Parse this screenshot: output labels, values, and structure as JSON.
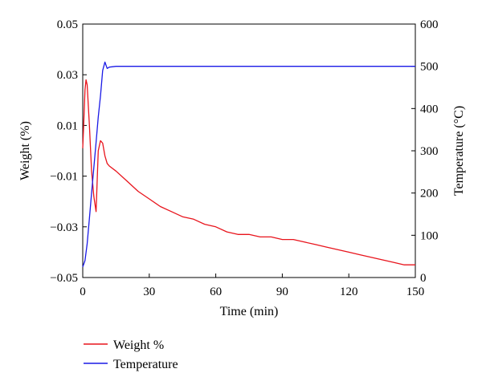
{
  "chart_data": {
    "type": "line",
    "xlabel": "Time (min)",
    "ylabel_left": "Weight (%)",
    "ylabel_right": "Temperature (°C)",
    "xlim": [
      0,
      150
    ],
    "ylim_left": [
      -0.05,
      0.05
    ],
    "ylim_right": [
      0,
      600
    ],
    "x_ticks": [
      0,
      30,
      60,
      90,
      120,
      150
    ],
    "y_left_ticks": [
      "0.05",
      "0.03",
      "0.01",
      "−0.01",
      "−0.03",
      "−0.05"
    ],
    "y_right_ticks": [
      600,
      500,
      400,
      300,
      200,
      100,
      0
    ],
    "grid": false,
    "legend_position": "bottom-left",
    "series": [
      {
        "name": "Weight %",
        "axis": "left",
        "color": "#e8141c",
        "x": [
          0,
          0.5,
          1,
          1.5,
          2,
          3,
          4,
          5,
          6,
          7,
          8,
          9,
          10,
          11,
          12,
          15,
          20,
          25,
          30,
          35,
          40,
          45,
          50,
          55,
          60,
          65,
          70,
          75,
          80,
          85,
          90,
          95,
          100,
          105,
          110,
          115,
          120,
          125,
          130,
          135,
          140,
          145,
          150
        ],
        "y": [
          0.001,
          0.012,
          0.024,
          0.028,
          0.026,
          0.01,
          -0.008,
          -0.018,
          -0.024,
          0.0,
          0.004,
          0.003,
          -0.002,
          -0.005,
          -0.006,
          -0.008,
          -0.012,
          -0.016,
          -0.019,
          -0.022,
          -0.024,
          -0.026,
          -0.027,
          -0.029,
          -0.03,
          -0.032,
          -0.033,
          -0.033,
          -0.034,
          -0.034,
          -0.035,
          -0.035,
          -0.036,
          -0.037,
          -0.038,
          -0.039,
          -0.04,
          -0.041,
          -0.042,
          -0.043,
          -0.044,
          -0.045,
          -0.045
        ]
      },
      {
        "name": "Temperature",
        "axis": "right",
        "color": "#1a1ae6",
        "x": [
          0,
          1,
          2,
          3,
          4,
          5,
          6,
          7,
          8,
          9,
          10,
          11,
          12,
          15,
          20,
          30,
          60,
          90,
          120,
          150
        ],
        "y": [
          25,
          40,
          80,
          140,
          200,
          260,
          320,
          380,
          430,
          490,
          510,
          495,
          498,
          500,
          500,
          500,
          500,
          500,
          500,
          500
        ]
      }
    ]
  }
}
